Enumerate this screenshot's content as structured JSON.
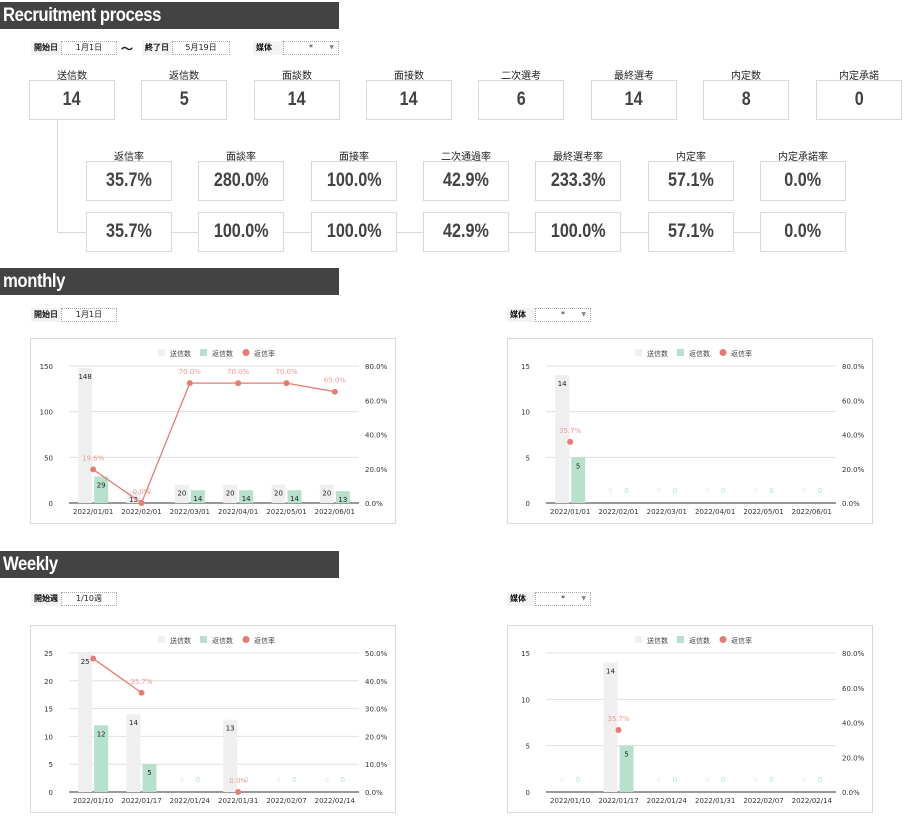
{
  "sections": {
    "recruitment": "Recruitment  process",
    "monthly": "monthly",
    "weekly": "Weekly"
  },
  "filters": {
    "start_label": "開始日",
    "start_value": "1月1日",
    "tilde": "～",
    "end_label": "終了日",
    "end_value": "5月19日",
    "media_label": "媒体",
    "media_value": "*",
    "monthly_start_label": "開始日",
    "monthly_start_value": "1月1日",
    "monthly_media_label": "媒体",
    "monthly_media_value": "*",
    "weekly_start_label": "開始週",
    "weekly_start_value": "1/10週",
    "weekly_media_label": "媒体",
    "weekly_media_value": "*"
  },
  "counts": [
    {
      "label": "送信数",
      "value": "14"
    },
    {
      "label": "返信数",
      "value": "5"
    },
    {
      "label": "面談数",
      "value": "14"
    },
    {
      "label": "面接数",
      "value": "14"
    },
    {
      "label": "二次選考",
      "value": "6"
    },
    {
      "label": "最終選考",
      "value": "14"
    },
    {
      "label": "内定数",
      "value": "8"
    },
    {
      "label": "内定承諾",
      "value": "0"
    }
  ],
  "rates": [
    {
      "label": "返信率",
      "value": "35.7%",
      "cumulative": "35.7%"
    },
    {
      "label": "面談率",
      "value": "280.0%",
      "cumulative": "100.0%"
    },
    {
      "label": "面接率",
      "value": "100.0%",
      "cumulative": "100.0%"
    },
    {
      "label": "二次通過率",
      "value": "42.9%",
      "cumulative": "42.9%"
    },
    {
      "label": "最終選考率",
      "value": "233.3%",
      "cumulative": "100.0%"
    },
    {
      "label": "内定率",
      "value": "57.1%",
      "cumulative": "57.1%"
    },
    {
      "label": "内定承諾率",
      "value": "0.0%",
      "cumulative": "0.0%"
    }
  ],
  "colors": {
    "sent": "#efefef",
    "reply": "#b7e1cd",
    "rate": "#e67c73",
    "header": "#434343"
  },
  "chart_data": [
    {
      "id": "monthly-all",
      "type": "bar",
      "legend": [
        "送信数",
        "返信数",
        "返信率"
      ],
      "legend_position": "top",
      "categories": [
        "2022/01/01",
        "2022/02/01",
        "2022/03/01",
        "2022/04/01",
        "2022/05/01",
        "2022/06/01"
      ],
      "series": [
        {
          "name": "送信数",
          "type": "bar",
          "values": [
            148,
            13,
            20,
            20,
            20,
            20
          ]
        },
        {
          "name": "返信数",
          "type": "bar",
          "values": [
            29,
            0,
            14,
            14,
            14,
            13
          ]
        },
        {
          "name": "返信率",
          "type": "line",
          "axis": "right",
          "values": [
            19.6,
            0.0,
            70.0,
            70.0,
            70.0,
            65.0
          ],
          "labels": [
            "19.6%",
            "0.0%",
            "70.0%",
            "70.0%",
            "70.0%",
            "65.0%"
          ]
        }
      ],
      "ylim": [
        0,
        150
      ],
      "yticks": [
        0,
        50,
        100,
        150
      ],
      "y2lim": [
        0,
        80
      ],
      "y2ticks": [
        "0.0%",
        "20.0%",
        "40.0%",
        "60.0%",
        "80.0%"
      ],
      "grid": true
    },
    {
      "id": "monthly-media",
      "type": "bar",
      "legend": [
        "送信数",
        "返信数",
        "返信率"
      ],
      "legend_position": "top",
      "categories": [
        "2022/01/01",
        "2022/02/01",
        "2022/03/01",
        "2022/04/01",
        "2022/05/01",
        "2022/06/01"
      ],
      "series": [
        {
          "name": "送信数",
          "type": "bar",
          "values": [
            14,
            0,
            0,
            0,
            0,
            0
          ]
        },
        {
          "name": "返信数",
          "type": "bar",
          "values": [
            5,
            0,
            0,
            0,
            0,
            0
          ]
        },
        {
          "name": "返信率",
          "type": "line",
          "axis": "right",
          "values": [
            35.7,
            null,
            null,
            null,
            null,
            null
          ],
          "labels": [
            "35.7%",
            "",
            "",
            "",
            "",
            ""
          ]
        }
      ],
      "ylim": [
        0,
        15
      ],
      "yticks": [
        0,
        5,
        10,
        15
      ],
      "y2lim": [
        0,
        80
      ],
      "y2ticks": [
        "0.0%",
        "20.0%",
        "40.0%",
        "60.0%",
        "80.0%"
      ],
      "grid": true
    },
    {
      "id": "weekly-all",
      "type": "bar",
      "legend": [
        "送信数",
        "返信数",
        "返信率"
      ],
      "legend_position": "top",
      "categories": [
        "2022/01/10",
        "2022/01/17",
        "2022/01/24",
        "2022/01/31",
        "2022/02/07",
        "2022/02/14"
      ],
      "series": [
        {
          "name": "送信数",
          "type": "bar",
          "values": [
            25,
            14,
            0,
            13,
            0,
            0
          ]
        },
        {
          "name": "返信数",
          "type": "bar",
          "values": [
            12,
            5,
            0,
            0,
            0,
            0
          ]
        },
        {
          "name": "返信率",
          "type": "line",
          "axis": "right",
          "values": [
            48.0,
            35.7,
            null,
            0.0,
            null,
            null
          ],
          "labels": [
            "",
            "35.7%",
            "",
            "0.0%",
            "",
            ""
          ]
        }
      ],
      "ylim": [
        0,
        25
      ],
      "yticks": [
        0,
        5,
        10,
        15,
        20,
        25
      ],
      "y2lim": [
        0,
        50
      ],
      "y2ticks": [
        "0.0%",
        "10.0%",
        "20.0%",
        "30.0%",
        "40.0%",
        "50.0%"
      ],
      "grid": true
    },
    {
      "id": "weekly-media",
      "type": "bar",
      "legend": [
        "送信数",
        "返信数",
        "返信率"
      ],
      "legend_position": "top",
      "categories": [
        "2022/01/10",
        "2022/01/17",
        "2022/01/24",
        "2022/01/31",
        "2022/02/07",
        "2022/02/14"
      ],
      "series": [
        {
          "name": "送信数",
          "type": "bar",
          "values": [
            0,
            14,
            0,
            0,
            0,
            0
          ]
        },
        {
          "name": "返信数",
          "type": "bar",
          "values": [
            0,
            5,
            0,
            0,
            0,
            0
          ]
        },
        {
          "name": "返信率",
          "type": "line",
          "axis": "right",
          "values": [
            null,
            35.7,
            null,
            null,
            null,
            null
          ],
          "labels": [
            "",
            "35.7%",
            "",
            "",
            "",
            ""
          ]
        }
      ],
      "ylim": [
        0,
        15
      ],
      "yticks": [
        0,
        5,
        10,
        15
      ],
      "y2lim": [
        0,
        80
      ],
      "y2ticks": [
        "0.0%",
        "20.0%",
        "40.0%",
        "60.0%",
        "80.0%"
      ],
      "grid": true
    }
  ]
}
